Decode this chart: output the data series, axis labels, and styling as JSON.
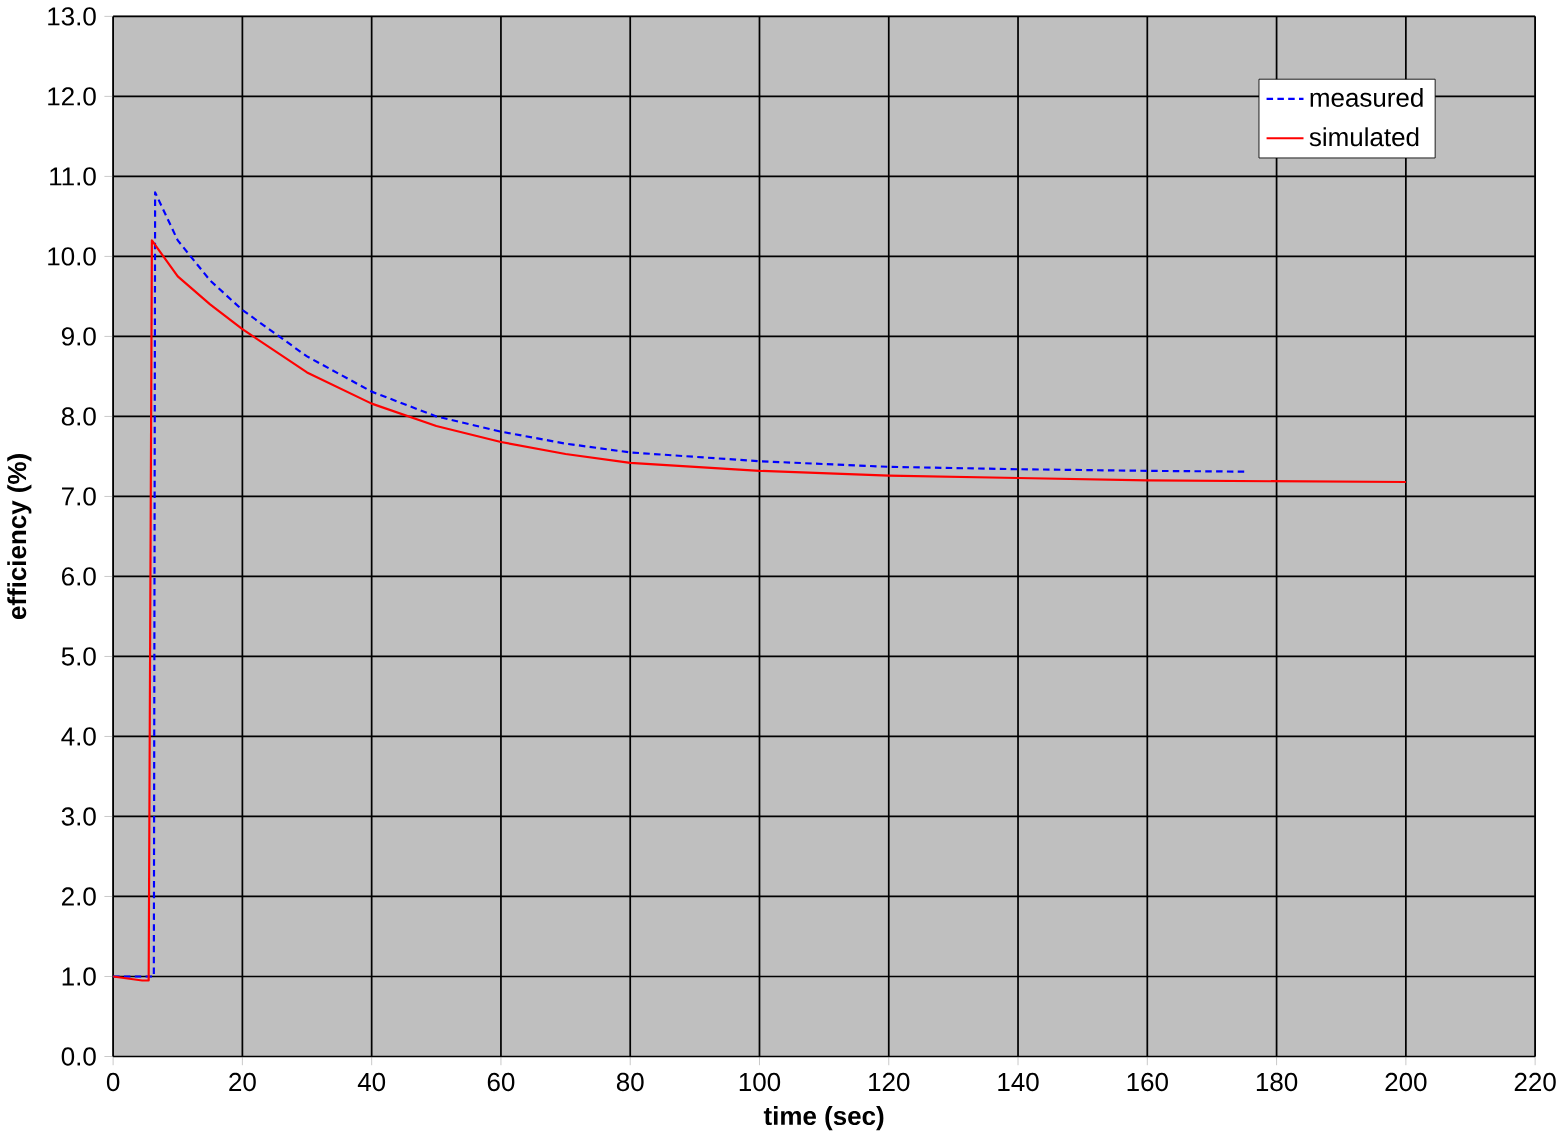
{
  "chart_data": {
    "type": "line",
    "xlabel": "time (sec)",
    "ylabel": "efficiency (%)",
    "xlim": [
      0,
      220
    ],
    "ylim": [
      0,
      13
    ],
    "xticks": [
      0,
      20,
      40,
      60,
      80,
      100,
      120,
      140,
      160,
      180,
      200,
      220
    ],
    "yticks": [
      {
        "value": 0,
        "label": "0.0"
      },
      {
        "value": 1,
        "label": "1.0"
      },
      {
        "value": 2,
        "label": "2.0"
      },
      {
        "value": 3,
        "label": "3.0"
      },
      {
        "value": 4,
        "label": "4.0"
      },
      {
        "value": 5,
        "label": "5.0"
      },
      {
        "value": 6,
        "label": "6.0"
      },
      {
        "value": 7,
        "label": "7.0"
      },
      {
        "value": 8,
        "label": "8.0"
      },
      {
        "value": 9,
        "label": "9.0"
      },
      {
        "value": 10,
        "label": "10.0"
      },
      {
        "value": 11,
        "label": "11.0"
      },
      {
        "value": 12,
        "label": "12.0"
      },
      {
        "value": 13,
        "label": "13.0"
      }
    ],
    "grid": true,
    "legend": "top right",
    "series": [
      {
        "name": "measured",
        "color": "#0000ff",
        "line_style": "dashed",
        "x": [
          0,
          6.3,
          6.5,
          10,
          15,
          20,
          30,
          40,
          50,
          60,
          70,
          80,
          100,
          120,
          140,
          160,
          175
        ],
        "values": [
          1.0,
          1.0,
          10.8,
          10.2,
          9.7,
          9.33,
          8.75,
          8.31,
          8.0,
          7.81,
          7.66,
          7.55,
          7.44,
          7.37,
          7.34,
          7.32,
          7.31
        ]
      },
      {
        "name": "simulated",
        "color": "#ff0000",
        "line_style": "solid",
        "x": [
          0,
          4.5,
          5.5,
          6,
          10,
          15,
          20,
          30,
          40,
          50,
          60,
          70,
          80,
          100,
          120,
          140,
          160,
          200
        ],
        "values": [
          1.0,
          0.95,
          0.95,
          10.2,
          9.75,
          9.4,
          9.09,
          8.55,
          8.16,
          7.88,
          7.68,
          7.53,
          7.42,
          7.32,
          7.26,
          7.23,
          7.2,
          7.18
        ]
      }
    ]
  }
}
